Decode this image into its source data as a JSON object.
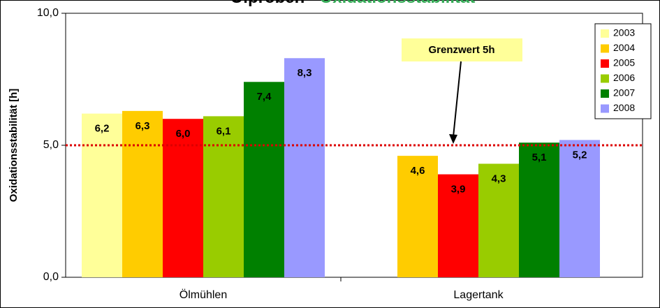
{
  "chart_data": {
    "type": "bar",
    "title_parts": [
      "Ölproben - ",
      "Oxidationsstabilität"
    ],
    "title_colors": [
      "#000000",
      "#33aa55"
    ],
    "ylabel": "Oxidationsstabilität [h]",
    "categories": [
      "Ölmühlen",
      "Lagertank"
    ],
    "series": [
      {
        "name": "2003",
        "color": "#ffff99",
        "values": [
          6.2,
          null
        ],
        "value_labels": [
          "6,2",
          null
        ]
      },
      {
        "name": "2004",
        "color": "#ffcc00",
        "values": [
          6.3,
          4.6
        ],
        "value_labels": [
          "6,3",
          "4,6"
        ]
      },
      {
        "name": "2005",
        "color": "#ff0000",
        "values": [
          6.0,
          3.9
        ],
        "value_labels": [
          "6,0",
          "3,9"
        ]
      },
      {
        "name": "2006",
        "color": "#99cc00",
        "values": [
          6.1,
          4.3
        ],
        "value_labels": [
          "6,1",
          "4,3"
        ]
      },
      {
        "name": "2007",
        "color": "#008000",
        "values": [
          7.4,
          5.1
        ],
        "value_labels": [
          "7,4",
          "5,1"
        ]
      },
      {
        "name": "2008",
        "color": "#9999ff",
        "values": [
          8.3,
          5.2
        ],
        "value_labels": [
          "8,3",
          "5,2"
        ]
      }
    ],
    "ylim": [
      0,
      10
    ],
    "yticks": [
      {
        "value": 0,
        "label": "0,0"
      },
      {
        "value": 5,
        "label": "5,0"
      },
      {
        "value": 10,
        "label": "10,0"
      }
    ],
    "reference_line": {
      "value": 5,
      "color": "#dd0000",
      "label": "Grenzwert 5h"
    },
    "legend": "right"
  }
}
